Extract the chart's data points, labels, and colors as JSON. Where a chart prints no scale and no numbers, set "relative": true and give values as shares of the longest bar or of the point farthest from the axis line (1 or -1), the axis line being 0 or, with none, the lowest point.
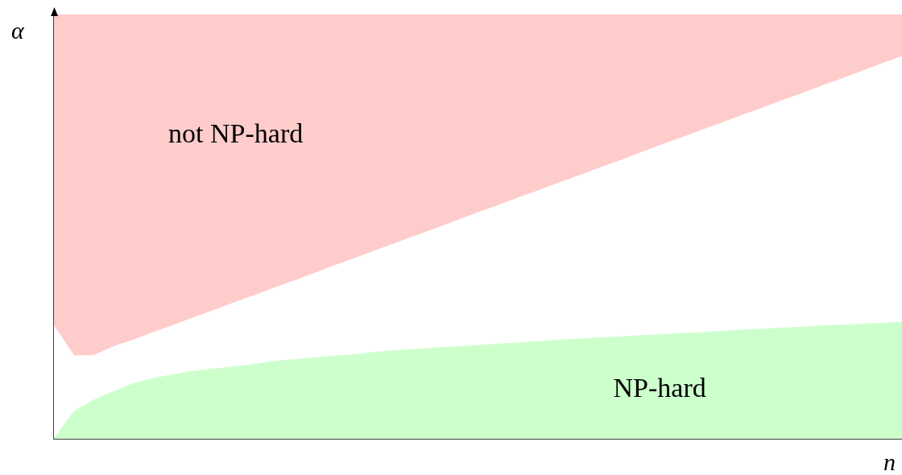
{
  "chart_data": {
    "type": "area",
    "relative": true,
    "stacked": true,
    "xlabel": "n",
    "ylabel": "α",
    "legend": false,
    "grid": false,
    "categories": [
      null,
      null,
      null,
      null,
      null,
      null,
      null,
      null,
      null,
      null,
      null,
      null,
      null,
      null,
      null,
      null,
      null,
      null,
      null,
      null,
      null,
      null,
      null,
      null,
      null,
      null,
      null,
      null,
      null,
      null,
      null,
      null,
      null,
      null,
      null,
      null,
      null,
      null,
      null,
      null,
      null,
      null,
      null
    ],
    "series": [
      {
        "name": "NP-hard",
        "color": "#ccffcc",
        "values": [
          0,
          0.065,
          0.092,
          0.112,
          0.131,
          0.143,
          0.152,
          0.16,
          0.165,
          0.17,
          0.176,
          0.183,
          0.187,
          0.191,
          0.195,
          0.199,
          0.204,
          0.208,
          0.211,
          0.214,
          0.217,
          0.22,
          0.223,
          0.226,
          0.229,
          0.232,
          0.235,
          0.238,
          0.24,
          0.243,
          0.245,
          0.248,
          0.25,
          0.253,
          0.256,
          0.258,
          0.261,
          0.263,
          0.266,
          0.268,
          0.27,
          0.272,
          0.275
        ]
      },
      {
        "color": "#ffffff",
        "values": [
          0.266,
          0.13,
          0.105,
          0.106,
          0.103,
          0.109,
          0.117,
          0.127,
          0.139,
          0.152,
          0.163,
          0.174,
          0.187,
          0.201,
          0.215,
          0.228,
          0.241,
          0.254,
          0.269,
          0.283,
          0.298,
          0.313,
          0.327,
          0.342,
          0.356,
          0.371,
          0.385,
          0.4,
          0.415,
          0.43,
          0.446,
          0.46,
          0.476,
          0.49,
          0.505,
          0.52,
          0.535,
          0.55,
          0.565,
          0.58,
          0.596,
          0.612,
          0.626
        ]
      },
      {
        "name": "not NP-hard",
        "color": "#ffcccc",
        "values": [
          0.734,
          0.805,
          0.803,
          0.782,
          0.766,
          0.748,
          0.731,
          0.713,
          0.696,
          0.678,
          0.661,
          0.643,
          0.626,
          0.608,
          0.59,
          0.573,
          0.555,
          0.538,
          0.52,
          0.503,
          0.485,
          0.467,
          0.45,
          0.432,
          0.415,
          0.397,
          0.38,
          0.362,
          0.345,
          0.327,
          0.309,
          0.292,
          0.274,
          0.257,
          0.239,
          0.222,
          0.204,
          0.187,
          0.169,
          0.152,
          0.134,
          0.116,
          0.099
        ]
      }
    ]
  }
}
